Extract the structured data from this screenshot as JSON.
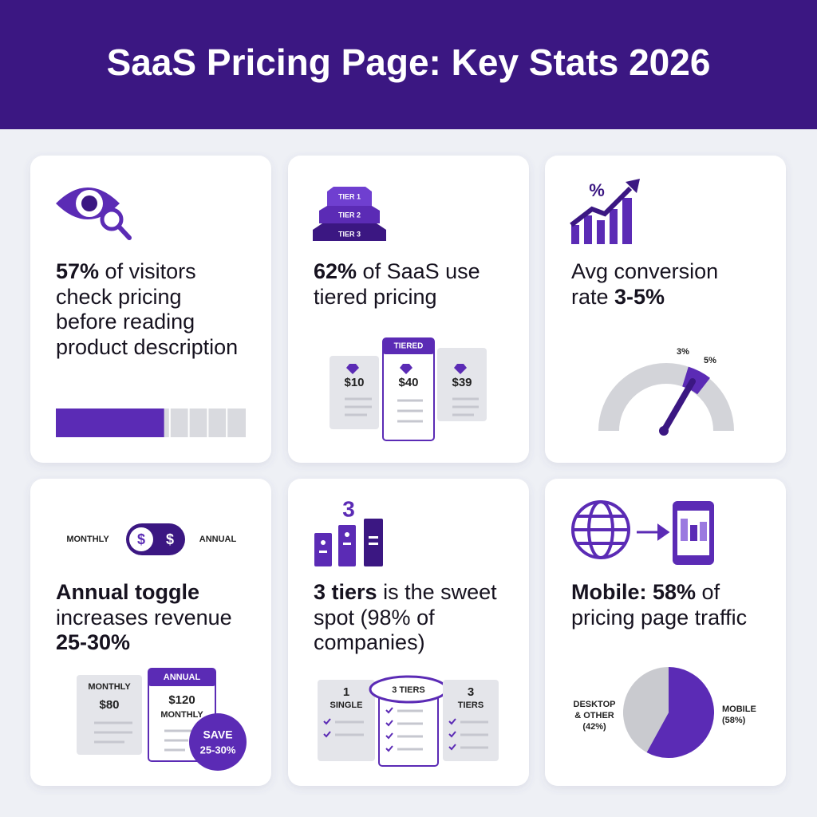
{
  "header": {
    "title": "SaaS Pricing Page: Key Stats 2026"
  },
  "cards": [
    {
      "stat": [
        "57%",
        " of visitors check pricing before reading product description"
      ],
      "bar": {
        "value": 57,
        "max": 100
      }
    },
    {
      "icon_tiers": [
        "TIER 1",
        "TIER 2",
        "TIER 3"
      ],
      "stat": [
        "62%",
        " of SaaS use tiered pricing"
      ],
      "plans": [
        {
          "price": "$10"
        },
        {
          "badge": "TIERED",
          "price": "$40"
        },
        {
          "price": "$39"
        }
      ]
    },
    {
      "stat": [
        "Avg conversion rate ",
        "3-5%"
      ],
      "gauge": {
        "labels": [
          "3%",
          "5%"
        ]
      }
    },
    {
      "toggle": {
        "left": "MONTHLY",
        "right": "ANNUAL",
        "icons": [
          "$",
          "$"
        ]
      },
      "stat": [
        "Annual toggle",
        " increases revenue ",
        "25-30%"
      ],
      "plans": [
        {
          "label": "MONTHLY",
          "price": "$80"
        },
        {
          "badge": "ANNUAL",
          "price": "$120",
          "sub": "MONTHLY"
        }
      ],
      "save": [
        "SAVE",
        "25-30%"
      ]
    },
    {
      "icon_number": "3",
      "stat": [
        "3 tiers",
        " is the sweet spot (98% of companies)"
      ],
      "plans": [
        {
          "top": "1",
          "label": "SINGLE"
        },
        {
          "label": "3 TIERS"
        },
        {
          "top": "3",
          "label": "TIERS"
        }
      ]
    },
    {
      "stat": [
        "Mobile: ",
        "58%",
        " of pricing page traffic"
      ],
      "pie": {
        "slices": [
          {
            "label": [
              "DESKTOP",
              "& OTHER",
              "(42%)"
            ],
            "value": 42,
            "color": "#c9cacf"
          },
          {
            "label": [
              "MOBILE",
              "(58%)"
            ],
            "value": 58,
            "color": "#5b2bb5"
          }
        ]
      }
    }
  ]
}
